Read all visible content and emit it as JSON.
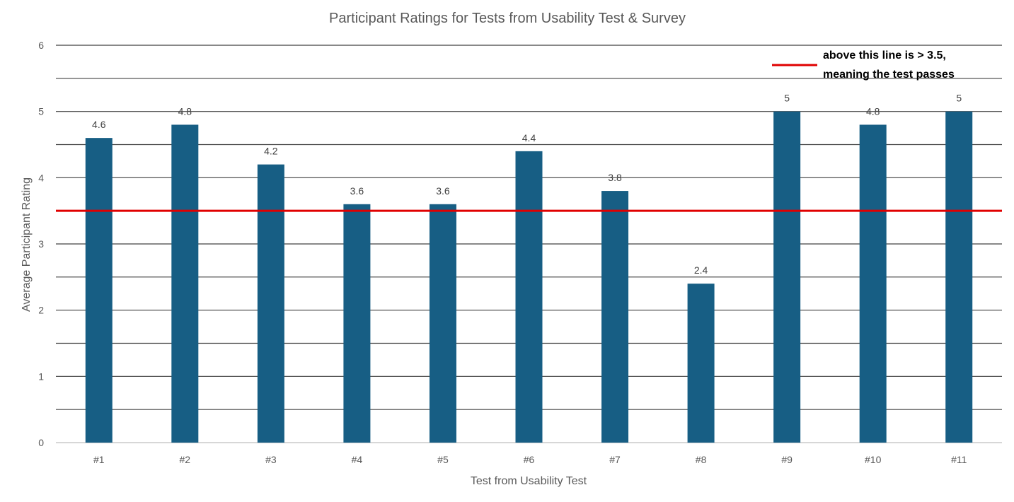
{
  "chart_data": {
    "type": "bar",
    "title": "Participant Ratings for Tests from Usability Test & Survey",
    "xlabel": "Test from Usability Test",
    "ylabel": "Average Participant Rating",
    "categories": [
      "#1",
      "#2",
      "#3",
      "#4",
      "#5",
      "#6",
      "#7",
      "#8",
      "#9",
      "#10",
      "#11"
    ],
    "values": [
      4.6,
      4.8,
      4.2,
      3.6,
      3.6,
      4.4,
      3.8,
      2.4,
      5,
      4.8,
      5
    ],
    "data_labels": [
      "4.6",
      "4.8",
      "4.2",
      "3.6",
      "3.6",
      "4.4",
      "3.8",
      "2.4",
      "5",
      "4.8",
      "5"
    ],
    "ylim": [
      0,
      6
    ],
    "y_ticks": [
      0,
      1,
      2,
      3,
      4,
      5,
      6
    ],
    "y_gridlines": [
      0.5,
      1,
      1.5,
      2,
      2.5,
      3,
      3.5,
      4,
      4.5,
      5,
      5.5,
      6
    ],
    "grid": true,
    "bar_color": "#175E84",
    "gridline_color": "#404040",
    "threshold": {
      "value": 3.5,
      "color": "#E00000",
      "legend_lines": [
        "above this line is > 3.5,",
        "meaning the test passes"
      ],
      "legend_position": "top-right"
    }
  }
}
